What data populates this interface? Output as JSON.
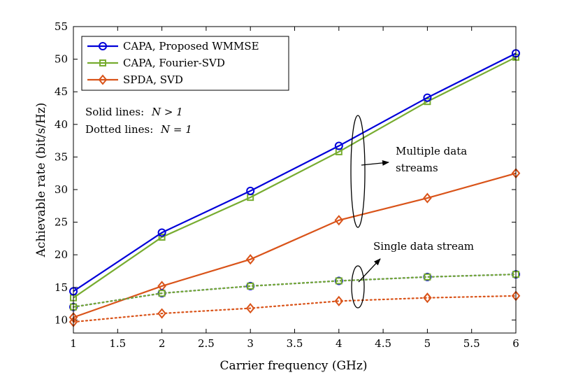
{
  "chart_data": {
    "type": "line",
    "xlabel": "Carrier frequency (GHz)",
    "ylabel": "Achievable rate (bit/s/Hz)",
    "xlim": [
      1,
      6
    ],
    "ylim": [
      8,
      55
    ],
    "x_ticks": [
      "1",
      "1.5",
      "2",
      "2.5",
      "3",
      "3.5",
      "4",
      "4.5",
      "5",
      "5.5",
      "6"
    ],
    "y_ticks": [
      "10",
      "15",
      "20",
      "25",
      "30",
      "35",
      "40",
      "45",
      "50",
      "55"
    ],
    "grid": false,
    "legend_position": "top-left",
    "x": [
      1,
      2,
      3,
      4,
      5,
      6
    ],
    "series": [
      {
        "name": "CAPA, Proposed WMMSE",
        "color": "#0000d9",
        "marker": "circle",
        "line": "solid",
        "values": [
          14.4,
          23.4,
          29.8,
          36.7,
          44.1,
          50.9
        ]
      },
      {
        "name": "CAPA, Fourier-SVD",
        "color": "#77ac30",
        "marker": "square",
        "line": "solid",
        "values": [
          13.4,
          22.7,
          28.8,
          35.8,
          43.5,
          50.3
        ]
      },
      {
        "name": "SPDA, SVD",
        "color": "#d95319",
        "marker": "diamond",
        "line": "solid",
        "values": [
          10.4,
          15.2,
          19.3,
          25.3,
          28.7,
          32.5
        ]
      },
      {
        "name": "",
        "color": "#0000d9",
        "marker": "circle",
        "line": "dotted",
        "values": [
          12.0,
          14.1,
          15.2,
          16.0,
          16.6,
          17.0
        ]
      },
      {
        "name": "",
        "color": "#77ac30",
        "marker": "square",
        "line": "dotted",
        "values": [
          12.0,
          14.1,
          15.2,
          16.0,
          16.6,
          17.0
        ]
      },
      {
        "name": "",
        "color": "#d95319",
        "marker": "diamond",
        "line": "dotted",
        "values": [
          9.7,
          11.0,
          11.8,
          12.9,
          13.4,
          13.7
        ]
      }
    ],
    "annotations": {
      "solid_note": "Solid lines:",
      "solid_math": "N > 1",
      "dotted_note": "Dotted lines:",
      "dotted_math": "N = 1",
      "multi_line1": "Multiple data",
      "multi_line2": "streams",
      "single": "Single data stream"
    }
  }
}
